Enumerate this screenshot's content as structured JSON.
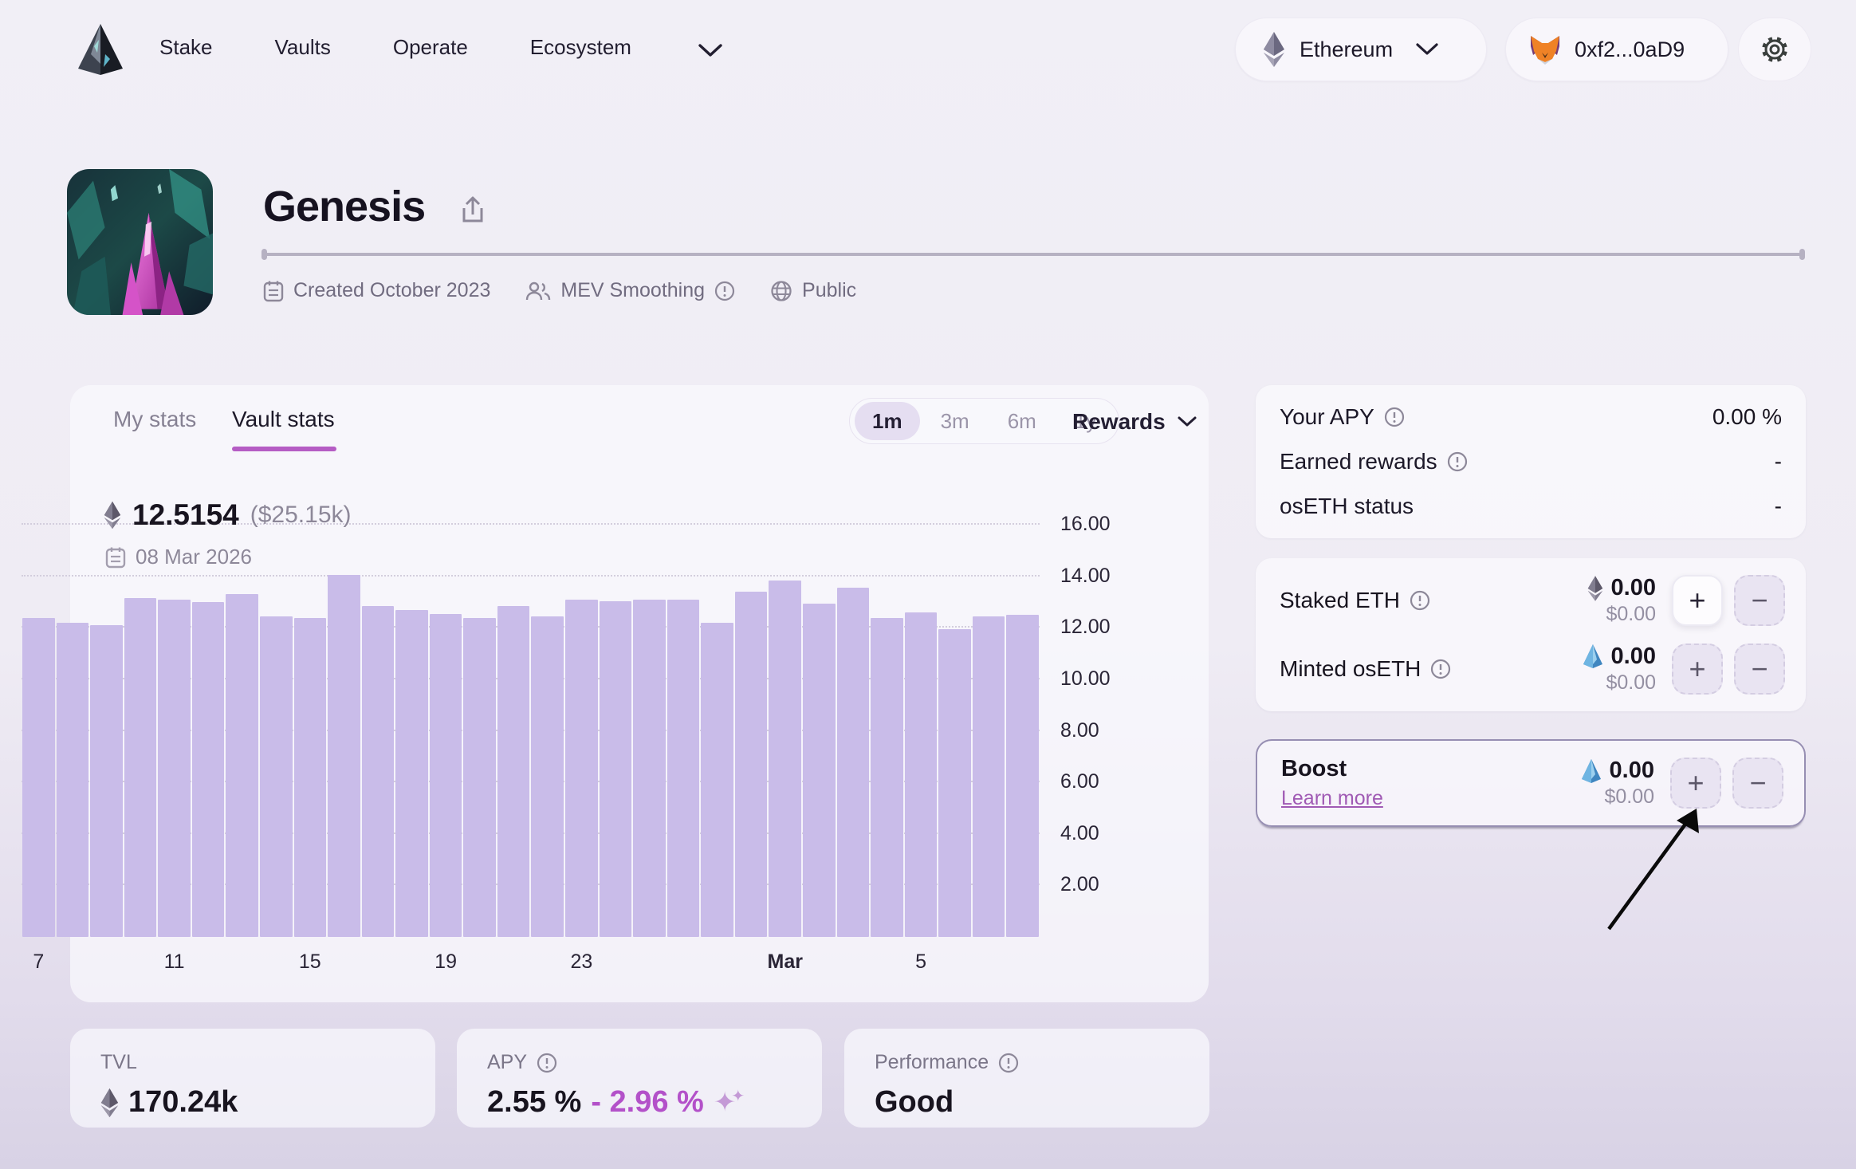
{
  "nav": {
    "items": [
      {
        "label": "Stake"
      },
      {
        "label": "Vaults"
      },
      {
        "label": "Operate"
      },
      {
        "label": "Ecosystem"
      }
    ],
    "network": "Ethereum",
    "wallet": "0xf2...0aD9"
  },
  "vault": {
    "name": "Genesis",
    "created": "Created October 2023",
    "mev": "MEV Smoothing",
    "visibility": "Public"
  },
  "chart_controls": {
    "tabs": {
      "my": "My stats",
      "vault": "Vault stats"
    },
    "ranges": {
      "r1m": "1m",
      "r3m": "3m",
      "r6m": "6m",
      "r1y": "1y"
    },
    "metric": "Rewards"
  },
  "chart_data": {
    "type": "bar",
    "title": "Rewards (1m)",
    "hover_value": "12.5154",
    "hover_usd": "($25.15k)",
    "hover_date": "08 Mar 2026",
    "ylim": [
      0,
      16.1
    ],
    "yticks": [
      2,
      4,
      6,
      8,
      10,
      12,
      14,
      16
    ],
    "values": [
      12.4,
      12.2,
      12.1,
      13.15,
      13.1,
      13.0,
      13.3,
      12.45,
      12.4,
      14.05,
      12.85,
      12.7,
      12.55,
      12.4,
      12.85,
      12.45,
      13.1,
      13.05,
      13.1,
      13.1,
      12.2,
      13.4,
      13.85,
      12.95,
      13.55,
      12.4,
      12.6,
      11.95,
      12.45,
      12.52
    ],
    "xticks": [
      {
        "index": 0,
        "label": "7"
      },
      {
        "index": 4,
        "label": "11"
      },
      {
        "index": 8,
        "label": "15"
      },
      {
        "index": 12,
        "label": "19"
      },
      {
        "index": 16,
        "label": "23"
      },
      {
        "index": 22,
        "label": "Mar",
        "bold": true
      },
      {
        "index": 26,
        "label": "5"
      }
    ],
    "bar_color": "#c9bce9",
    "grid": true,
    "legend": "none"
  },
  "side_panel": {
    "your_apy_label": "Your APY",
    "your_apy_value": "0.00 %",
    "earned_label": "Earned rewards",
    "earned_value": "-",
    "oseth_status_label": "osETH status",
    "oseth_status_value": "-",
    "staked_label": "Staked ETH",
    "staked_value": "0.00",
    "staked_usd": "$0.00",
    "minted_label": "Minted osETH",
    "minted_value": "0.00",
    "minted_usd": "$0.00",
    "boost_label": "Boost",
    "boost_link": "Learn more",
    "boost_value": "0.00",
    "boost_usd": "$0.00",
    "plus": "+",
    "minus": "−"
  },
  "bottom_stats": {
    "tvl_label": "TVL",
    "tvl_value": "170.24k",
    "apy_label": "APY",
    "apy_value": "2.55 %",
    "apy_boosted": "- 2.96 %",
    "perf_label": "Performance",
    "perf_value": "Good"
  },
  "colors": {
    "accent_purple": "#b55cc4",
    "bar_purple": "#c9bce9",
    "apy_purple": "#b351c9",
    "link_purple": "#a05ab4",
    "oseth_blue": "#4a9bd5",
    "eth_gray": "#5d5869"
  }
}
